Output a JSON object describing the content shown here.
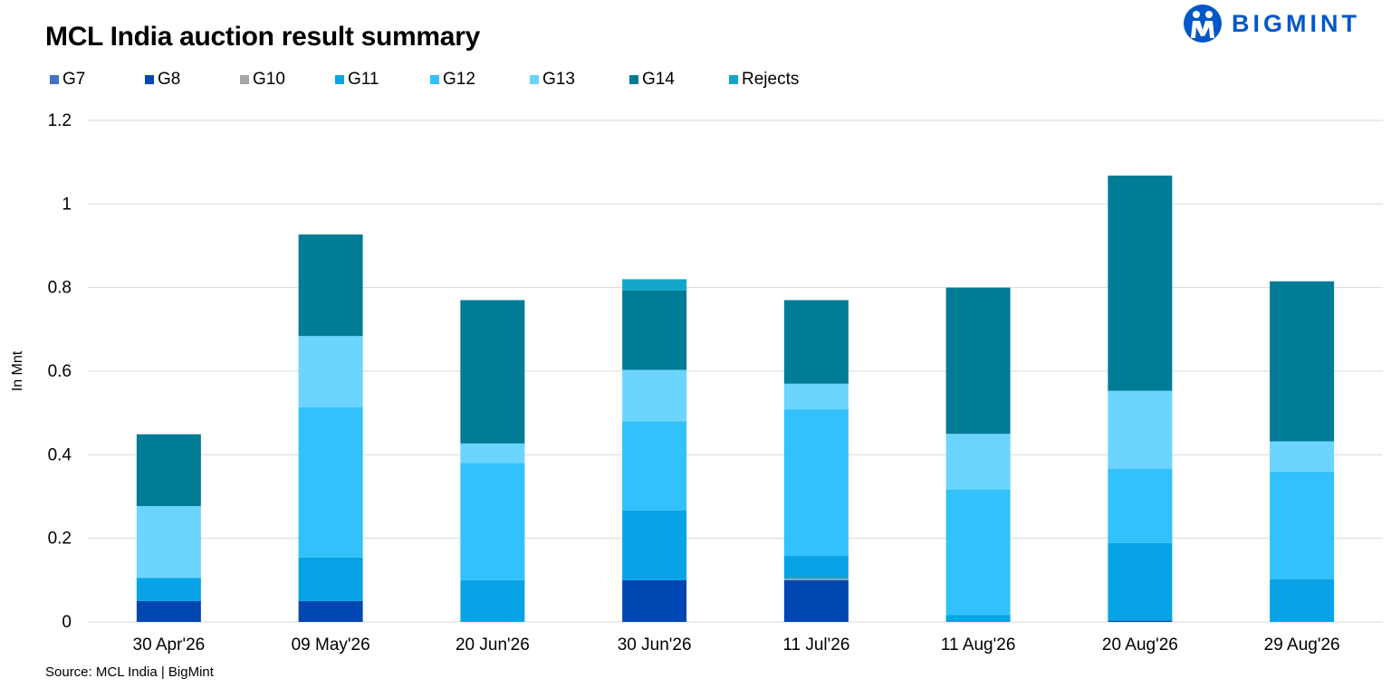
{
  "header": {
    "title": "MCL India auction result summary",
    "logo_text": "BIGMINT",
    "logo_color": "#0057c8"
  },
  "footer": {
    "source": "Source: MCL India | BigMint"
  },
  "chart_data": {
    "type": "bar",
    "stacked": true,
    "title": "MCL India auction result summary",
    "xlabel": "",
    "ylabel": "In Mnt",
    "ylim": [
      0,
      1.2
    ],
    "yticks": [
      "0",
      "0.2",
      "0.4",
      "0.6",
      "0.8",
      "1",
      "1.2"
    ],
    "grid": true,
    "legend_position": "top-left",
    "categories": [
      "30 Apr'26",
      "09 May'26",
      "20 Jun'26",
      "30 Jun'26",
      "11 Jul'26",
      "11 Aug'26",
      "20 Aug'26",
      "29 Aug'26"
    ],
    "series": [
      {
        "name": "G7",
        "color": "#4472c4",
        "values": [
          0,
          0,
          0,
          0,
          0,
          0,
          0,
          0
        ]
      },
      {
        "name": "G8",
        "color": "#0047b3",
        "values": [
          0.05,
          0.05,
          0,
          0.1,
          0.1,
          0,
          0.003,
          0
        ]
      },
      {
        "name": "G10",
        "color": "#a5a5a5",
        "values": [
          0,
          0,
          0,
          0,
          0.003,
          0,
          0,
          0
        ]
      },
      {
        "name": "G11",
        "color": "#07a3e6",
        "values": [
          0.055,
          0.104,
          0.1,
          0.167,
          0.055,
          0.017,
          0.186,
          0.102
        ]
      },
      {
        "name": "G12",
        "color": "#32c1fa",
        "values": [
          0,
          0.36,
          0.28,
          0.213,
          0.35,
          0.3,
          0.177,
          0.258
        ]
      },
      {
        "name": "G13",
        "color": "#6bd4ff",
        "values": [
          0.172,
          0.17,
          0.047,
          0.123,
          0.062,
          0.133,
          0.187,
          0.072
        ]
      },
      {
        "name": "G14",
        "color": "#007c96",
        "values": [
          0.172,
          0.243,
          0.343,
          0.19,
          0.2,
          0.35,
          0.515,
          0.383
        ]
      },
      {
        "name": "Rejects",
        "color": "#12a7c8",
        "values": [
          0,
          0,
          0,
          0.027,
          0,
          0,
          0,
          0
        ]
      }
    ]
  }
}
